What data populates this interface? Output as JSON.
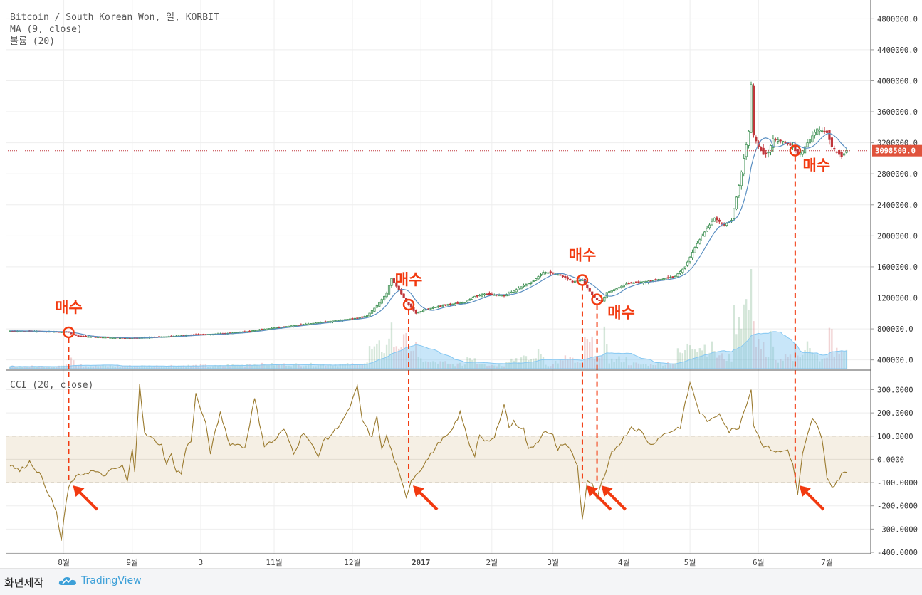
{
  "legend": {
    "line1": "Bitcoin / South Korean Won, 일, KORBIT",
    "line2": "MA (9, close)",
    "line3": "볼륨 (20)",
    "cci_label": "CCI (20, close)"
  },
  "footer": {
    "label": "화면제작",
    "brand": "TradingView"
  },
  "colors": {
    "up": "#3d8f52",
    "down": "#c0363b",
    "ma": "#5a8fc2",
    "cci": "#9a7a2e",
    "volume_ma": "#86c8f2",
    "annotation": "#f23a10",
    "cci_band": "#f5efe4"
  },
  "chart_data": [
    {
      "type": "candlestick",
      "title": "Bitcoin / South Korean Won, 일, KORBIT",
      "x_tick_labels": [
        "8월",
        "9월",
        "3",
        "11월",
        "12월",
        "2017",
        "2월",
        "3월",
        "4월",
        "5월",
        "6월",
        "7월"
      ],
      "y_ticks": [
        400000,
        800000,
        1200000,
        1600000,
        2000000,
        2400000,
        2800000,
        3200000,
        3600000,
        4000000,
        4400000,
        4800000
      ],
      "y_tick_labels": [
        "400000.0",
        "800000.0",
        "1200000.0",
        "1600000.0",
        "2000000.0",
        "2400000.0",
        "2800000.0",
        "3200000.0",
        "3600000.0",
        "4000000.0",
        "4400000.0",
        "4800000.0"
      ],
      "ylim": [
        360000,
        4950000
      ],
      "last_price": 3098500,
      "last_price_label": "3098500.0",
      "close_anchors": [
        [
          0,
          775000
        ],
        [
          18,
          765000
        ],
        [
          24,
          755000
        ],
        [
          26,
          720000
        ],
        [
          29,
          705000
        ],
        [
          32,
          700000
        ],
        [
          40,
          690000
        ],
        [
          48,
          680000
        ],
        [
          56,
          690000
        ],
        [
          64,
          700000
        ],
        [
          72,
          715000
        ],
        [
          80,
          730000
        ],
        [
          88,
          740000
        ],
        [
          96,
          760000
        ],
        [
          102,
          790000
        ],
        [
          110,
          820000
        ],
        [
          118,
          850000
        ],
        [
          126,
          880000
        ],
        [
          134,
          910000
        ],
        [
          142,
          940000
        ],
        [
          146,
          970000
        ],
        [
          150,
          1100000
        ],
        [
          154,
          1260000
        ],
        [
          156,
          1450000
        ],
        [
          158,
          1350000
        ],
        [
          162,
          1150000
        ],
        [
          166,
          1000000
        ],
        [
          170,
          1050000
        ],
        [
          174,
          1080000
        ],
        [
          178,
          1110000
        ],
        [
          186,
          1140000
        ],
        [
          190,
          1220000
        ],
        [
          194,
          1250000
        ],
        [
          198,
          1240000
        ],
        [
          202,
          1230000
        ],
        [
          206,
          1290000
        ],
        [
          210,
          1360000
        ],
        [
          214,
          1420000
        ],
        [
          218,
          1530000
        ],
        [
          222,
          1520000
        ],
        [
          226,
          1480000
        ],
        [
          230,
          1410000
        ],
        [
          234,
          1430000
        ],
        [
          236,
          1330000
        ],
        [
          238,
          1240000
        ],
        [
          240,
          1180000
        ],
        [
          242,
          1150000
        ],
        [
          244,
          1270000
        ],
        [
          248,
          1320000
        ],
        [
          252,
          1380000
        ],
        [
          256,
          1400000
        ],
        [
          262,
          1420000
        ],
        [
          268,
          1450000
        ],
        [
          272,
          1480000
        ],
        [
          276,
          1600000
        ],
        [
          280,
          1850000
        ],
        [
          284,
          2050000
        ],
        [
          288,
          2230000
        ],
        [
          292,
          2140000
        ],
        [
          295,
          2200000
        ],
        [
          298,
          2650000
        ],
        [
          300,
          3000000
        ],
        [
          302,
          3350000
        ],
        [
          303,
          3950000
        ],
        [
          304,
          3300000
        ],
        [
          306,
          3150000
        ],
        [
          308,
          3050000
        ],
        [
          310,
          3080000
        ],
        [
          312,
          3250000
        ],
        [
          316,
          3220000
        ],
        [
          320,
          3150000
        ],
        [
          322,
          3050000
        ],
        [
          324,
          3100000
        ],
        [
          326,
          3200000
        ],
        [
          330,
          3380000
        ],
        [
          334,
          3330000
        ],
        [
          336,
          3150000
        ],
        [
          338,
          3080000
        ],
        [
          340,
          3020000
        ],
        [
          342,
          3098500
        ]
      ],
      "ma_period": 9,
      "volume_ma_period": 20,
      "buy_markers": [
        {
          "label": "매수",
          "date": "8월"
        },
        {
          "label": "매수",
          "date": "1월"
        },
        {
          "label": "매수",
          "date": "3월"
        },
        {
          "label": "매수",
          "date": "3월"
        },
        {
          "label": "매수",
          "date": "6월"
        }
      ]
    },
    {
      "type": "line",
      "title": "CCI (20, close)",
      "y_ticks": [
        -400,
        -300,
        -200,
        -100,
        0,
        100,
        200,
        300
      ],
      "y_tick_labels": [
        "-400.0000",
        "-300.0000",
        "-200.0000",
        "-100.0000",
        "0.0000",
        "100.0000",
        "200.0000",
        "300.0000"
      ],
      "ylim": [
        -400,
        375
      ],
      "band": [
        -100,
        100
      ],
      "series": [
        {
          "values": [
            [
              0,
              -20
            ],
            [
              4,
              -50
            ],
            [
              8,
              -10
            ],
            [
              12,
              -60
            ],
            [
              16,
              -150
            ],
            [
              19,
              -230
            ],
            [
              21,
              -350
            ],
            [
              22,
              -260
            ],
            [
              24,
              -120
            ],
            [
              26,
              -85
            ],
            [
              30,
              -60
            ],
            [
              34,
              -50
            ],
            [
              38,
              -70
            ],
            [
              42,
              -45
            ],
            [
              46,
              -30
            ],
            [
              48,
              -95
            ],
            [
              50,
              40
            ],
            [
              51,
              -50
            ],
            [
              53,
              330
            ],
            [
              55,
              110
            ],
            [
              58,
              90
            ],
            [
              62,
              60
            ],
            [
              64,
              -20
            ],
            [
              66,
              20
            ],
            [
              68,
              -50
            ],
            [
              70,
              -60
            ],
            [
              72,
              50
            ],
            [
              74,
              80
            ],
            [
              76,
              280
            ],
            [
              80,
              150
            ],
            [
              82,
              30
            ],
            [
              84,
              120
            ],
            [
              86,
              200
            ],
            [
              88,
              130
            ],
            [
              90,
              60
            ],
            [
              92,
              70
            ],
            [
              96,
              50
            ],
            [
              100,
              260
            ],
            [
              104,
              60
            ],
            [
              108,
              80
            ],
            [
              112,
              130
            ],
            [
              116,
              30
            ],
            [
              118,
              70
            ],
            [
              120,
              120
            ],
            [
              124,
              50
            ],
            [
              126,
              10
            ],
            [
              128,
              80
            ],
            [
              130,
              90
            ],
            [
              134,
              140
            ],
            [
              138,
              200
            ],
            [
              142,
              310
            ],
            [
              144,
              170
            ],
            [
              148,
              90
            ],
            [
              150,
              190
            ],
            [
              152,
              40
            ],
            [
              154,
              100
            ],
            [
              158,
              -30
            ],
            [
              162,
              -160
            ],
            [
              164,
              -90
            ],
            [
              168,
              -40
            ],
            [
              172,
              20
            ],
            [
              176,
              80
            ],
            [
              180,
              110
            ],
            [
              184,
              200
            ],
            [
              188,
              60
            ],
            [
              190,
              20
            ],
            [
              192,
              110
            ],
            [
              194,
              70
            ],
            [
              198,
              90
            ],
            [
              202,
              240
            ],
            [
              204,
              140
            ],
            [
              206,
              160
            ],
            [
              210,
              130
            ],
            [
              212,
              40
            ],
            [
              216,
              80
            ],
            [
              218,
              120
            ],
            [
              222,
              100
            ],
            [
              224,
              40
            ],
            [
              226,
              70
            ],
            [
              228,
              60
            ],
            [
              230,
              20
            ],
            [
              232,
              -30
            ],
            [
              234,
              -260
            ],
            [
              236,
              -90
            ],
            [
              238,
              -110
            ],
            [
              240,
              -170
            ],
            [
              242,
              -100
            ],
            [
              244,
              -50
            ],
            [
              246,
              30
            ],
            [
              250,
              80
            ],
            [
              254,
              140
            ],
            [
              258,
              120
            ],
            [
              262,
              60
            ],
            [
              266,
              100
            ],
            [
              270,
              120
            ],
            [
              274,
              140
            ],
            [
              278,
              330
            ],
            [
              282,
              200
            ],
            [
              286,
              160
            ],
            [
              290,
              200
            ],
            [
              294,
              120
            ],
            [
              298,
              140
            ],
            [
              302,
              270
            ],
            [
              303,
              300
            ],
            [
              304,
              150
            ],
            [
              306,
              100
            ],
            [
              308,
              60
            ],
            [
              310,
              50
            ],
            [
              314,
              30
            ],
            [
              318,
              40
            ],
            [
              320,
              -20
            ],
            [
              322,
              -150
            ],
            [
              324,
              20
            ],
            [
              326,
              100
            ],
            [
              328,
              170
            ],
            [
              330,
              150
            ],
            [
              332,
              80
            ],
            [
              334,
              -70
            ],
            [
              336,
              -120
            ],
            [
              338,
              -100
            ],
            [
              340,
              -60
            ],
            [
              342,
              -60
            ]
          ]
        }
      ]
    }
  ]
}
